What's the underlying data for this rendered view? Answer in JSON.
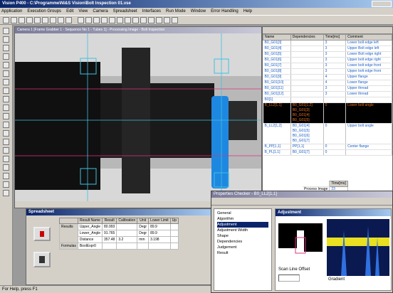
{
  "window_title": "Vision P400 - C:\\Programme\\NI&S Vision\\Bolt Inspection 01.vse",
  "menu": [
    "Application",
    "Execution Groups",
    "Edit",
    "View",
    "Camera",
    "Spreadsheet",
    "Interfaces",
    "Run Mode",
    "Window",
    "Error Handling",
    "Help"
  ],
  "camera_title": "Camera 1 [Frame Grabber 1 - Sequence No 1 - Tubes 1] - Processing Image - Bolt Inspection",
  "dependency_table": {
    "headers": [
      "Name",
      "Dependencies",
      "Time[ms]",
      "Comment"
    ],
    "rows": [
      {
        "name": "B0_G01[3]",
        "time": 3,
        "comment": "Lower bolt edge left"
      },
      {
        "name": "B0_G01[4]",
        "time": 3,
        "comment": "Upper Bolt edge left"
      },
      {
        "name": "B0_G01[5]",
        "time": 3,
        "comment": "Lower Bolt edge right"
      },
      {
        "name": "B0_G01[6]",
        "time": 3,
        "comment": "Upper bolt edge right"
      },
      {
        "name": "B0_G01[7]",
        "time": 3,
        "comment": "Lower bolt edge front"
      },
      {
        "name": "B0_G01[8]",
        "time": 3,
        "comment": "Upper bolt edge front"
      },
      {
        "name": "B0_G01[9]",
        "time": 4,
        "comment": "Upper flange"
      },
      {
        "name": "B0_G01[10]",
        "time": 4,
        "comment": "Lower flange"
      },
      {
        "name": "B0_G01[11]",
        "time": 3,
        "comment": "Upper thread"
      },
      {
        "name": "B0_G01[12]",
        "time": 3,
        "comment": "Lower thread"
      },
      {
        "name": "B0[1]"
      },
      {
        "name": "B_LL2[1,1]",
        "dependencies": [
          "B0_G01[1,2]",
          "B0_G01[3]",
          "B0_G01[4]",
          "B0_G01[5]"
        ],
        "time": 0,
        "comment": "Lower bolt angle"
      },
      {
        "name": "B_LL2[1,2]",
        "dependencies": [
          "B0_G01[4]",
          "B0_G01[5]",
          "B0_G01[6]",
          "B0_G01[7]"
        ],
        "time": 0,
        "comment": "Upper bolt angle"
      },
      {
        "name": "B_PP[1,1]",
        "dependencies": [
          "PP[1,1]"
        ],
        "time": 0,
        "comment": "Center flange"
      },
      {
        "name": "B_PL[1,1]",
        "dependencies": [
          "B0_G01[7]"
        ],
        "time": 0
      }
    ],
    "selected_row": 11
  },
  "process_time": {
    "header": "Time[ms]",
    "label": "Process Image",
    "value": 23
  },
  "spreadsheet": {
    "title": "Spreadsheet",
    "headers": [
      "Result Name",
      "Result",
      "Calibration",
      "Unit",
      "Lower Limit",
      "Up"
    ],
    "groups": [
      {
        "label": "Results",
        "rows": [
          {
            "name": "Upper_Angle",
            "result": 80.993,
            "unit": "Degr",
            "lower_limit": 89.9
          },
          {
            "name": "Lower_Angle",
            "result": 91.765,
            "unit": "Degr",
            "lower_limit": 89.9
          },
          {
            "name": "Distance",
            "result": 357.48,
            "calibration": 3.2,
            "unit": "mm",
            "lower_limit": 3.198
          }
        ]
      },
      {
        "label": "Formulas",
        "rows": [
          {
            "name": "BoolExpr0"
          }
        ]
      }
    ]
  },
  "properties": {
    "title": "Properties Checker - B0_LL2[1,1]",
    "tree": [
      "General",
      "Algorithm",
      "Adjustment",
      "Adjustment Width",
      "Shape",
      "Dependencies",
      "Judgement",
      "Result"
    ],
    "panel_title": "Adjustment",
    "scan_label": "Scan Line Offset",
    "gradient_label": "Gradient"
  },
  "status": "For Help, press F1"
}
